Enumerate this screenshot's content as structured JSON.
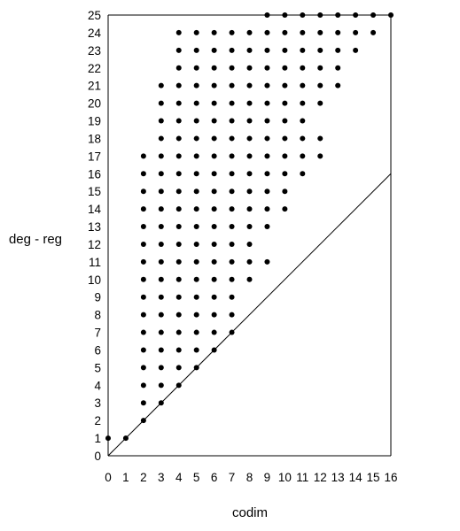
{
  "chart_data": {
    "type": "scatter",
    "title": "",
    "xlabel": "codim",
    "ylabel": "deg - reg",
    "xlim": [
      0,
      16
    ],
    "ylim": [
      0,
      25
    ],
    "x_ticks": [
      0,
      1,
      2,
      3,
      4,
      5,
      6,
      7,
      8,
      9,
      10,
      11,
      12,
      13,
      14,
      15,
      16
    ],
    "y_ticks": [
      0,
      1,
      2,
      3,
      4,
      5,
      6,
      7,
      8,
      9,
      10,
      11,
      12,
      13,
      14,
      15,
      16,
      17,
      18,
      19,
      20,
      21,
      22,
      23,
      24,
      25
    ],
    "grid": false,
    "reference_line": {
      "from": [
        0,
        0
      ],
      "to": [
        16,
        16
      ]
    },
    "columns": [
      {
        "x": 0,
        "y": [
          1
        ]
      },
      {
        "x": 1,
        "y": [
          1
        ]
      },
      {
        "x": 2,
        "y": [
          2,
          3,
          4,
          5,
          6,
          7,
          8,
          9,
          10,
          11,
          12,
          13,
          14,
          15,
          16,
          17
        ]
      },
      {
        "x": 3,
        "y": [
          3,
          4,
          5,
          6,
          7,
          8,
          9,
          10,
          11,
          12,
          13,
          14,
          15,
          16,
          17,
          18,
          19,
          20,
          21
        ]
      },
      {
        "x": 4,
        "y": [
          4,
          5,
          6,
          7,
          8,
          9,
          10,
          11,
          12,
          13,
          14,
          15,
          16,
          17,
          18,
          19,
          20,
          21,
          22,
          23,
          24
        ]
      },
      {
        "x": 5,
        "y": [
          5,
          6,
          7,
          8,
          9,
          10,
          11,
          12,
          13,
          14,
          15,
          16,
          17,
          18,
          19,
          20,
          21,
          22,
          23,
          24
        ]
      },
      {
        "x": 6,
        "y": [
          6,
          7,
          8,
          9,
          10,
          11,
          12,
          13,
          14,
          15,
          16,
          17,
          18,
          19,
          20,
          21,
          22,
          23,
          24
        ]
      },
      {
        "x": 7,
        "y": [
          7,
          8,
          9,
          10,
          11,
          12,
          13,
          14,
          15,
          16,
          17,
          18,
          19,
          20,
          21,
          22,
          23,
          24
        ]
      },
      {
        "x": 8,
        "y": [
          10,
          11,
          12,
          13,
          14,
          15,
          16,
          17,
          18,
          19,
          20,
          21,
          22,
          23,
          24
        ]
      },
      {
        "x": 9,
        "y": [
          11,
          13,
          14,
          15,
          16,
          17,
          18,
          19,
          20,
          21,
          22,
          23,
          24,
          25
        ]
      },
      {
        "x": 10,
        "y": [
          14,
          15,
          16,
          17,
          18,
          19,
          20,
          21,
          22,
          23,
          24,
          25
        ]
      },
      {
        "x": 11,
        "y": [
          16,
          17,
          18,
          19,
          20,
          21,
          22,
          23,
          24,
          25
        ]
      },
      {
        "x": 12,
        "y": [
          17,
          18,
          20,
          21,
          22,
          23,
          24,
          25
        ]
      },
      {
        "x": 13,
        "y": [
          21,
          22,
          23,
          24,
          25
        ]
      },
      {
        "x": 14,
        "y": [
          23,
          24,
          25
        ]
      },
      {
        "x": 15,
        "y": [
          24,
          25
        ]
      },
      {
        "x": 16,
        "y": [
          25
        ]
      }
    ]
  }
}
